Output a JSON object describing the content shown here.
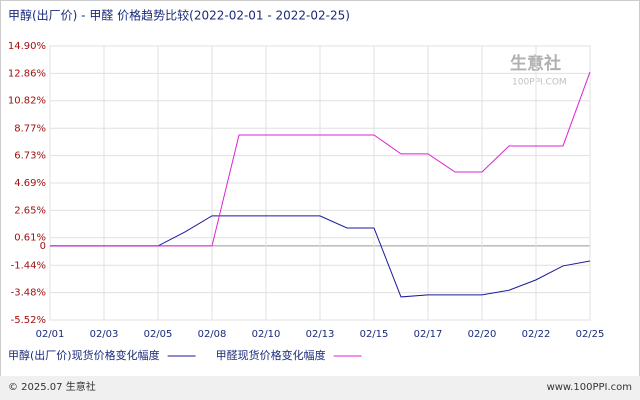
{
  "chart_data": {
    "type": "line",
    "title": "甲醇(出厂价) - 甲醛 价格趋势比较(2022-02-01 - 2022-02-25)",
    "watermark": "生意社",
    "watermark_sub": "100PPI.COM",
    "categories": [
      "02/01",
      null,
      "02/03",
      null,
      "02/05",
      null,
      "02/08",
      null,
      "02/10",
      null,
      "02/13",
      null,
      "02/15",
      null,
      "02/17",
      null,
      "02/20",
      null,
      "02/22",
      null,
      "02/25"
    ],
    "series": [
      {
        "name": "甲醇(出厂价)现货价格变化幅度",
        "color": "#1a1a9c",
        "values": [
          0,
          0,
          0,
          0,
          0,
          1.04,
          2.24,
          2.24,
          2.24,
          2.24,
          2.24,
          1.34,
          1.34,
          -3.8,
          -3.65,
          -3.65,
          -3.65,
          -3.3,
          -2.53,
          -1.49,
          -1.12
        ]
      },
      {
        "name": "甲醛现货价格变化幅度",
        "color": "#e020d0",
        "values": [
          0,
          0,
          0,
          0,
          0,
          0,
          0,
          8.27,
          8.27,
          8.27,
          8.27,
          8.27,
          8.27,
          6.86,
          6.86,
          5.51,
          5.51,
          7.45,
          7.45,
          7.45,
          12.97
        ]
      }
    ],
    "ylim": [
      -5.52,
      14.9
    ],
    "yticks": [
      {
        "value": 14.9,
        "label": "14.90%"
      },
      {
        "value": 12.86,
        "label": "12.86%"
      },
      {
        "value": 10.82,
        "label": "10.82%"
      },
      {
        "value": 8.77,
        "label": "8.77%"
      },
      {
        "value": 6.73,
        "label": "6.73%"
      },
      {
        "value": 4.69,
        "label": "4.69%"
      },
      {
        "value": 2.65,
        "label": "2.65%"
      },
      {
        "value": 0.61,
        "label": "0.61%"
      },
      0,
      {
        "value": -1.44,
        "label": "-1.44%"
      },
      {
        "value": -3.48,
        "label": "-3.48%"
      },
      {
        "value": -5.52,
        "label": "-5.52%"
      }
    ],
    "grid": true,
    "footer_left": "© 2025.07 生意社",
    "footer_right": "www.100PPI.com"
  }
}
